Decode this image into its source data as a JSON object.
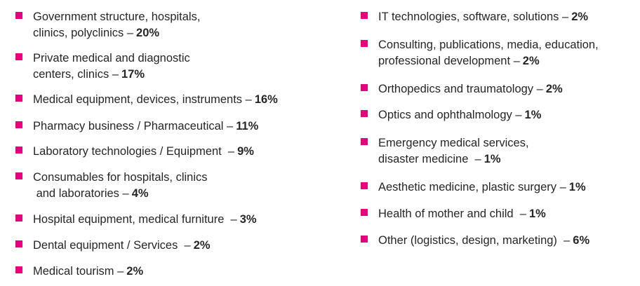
{
  "accent_color": "#e6007e",
  "bullet_icon": "square-bullet",
  "left_items": [
    {
      "lines": [
        "Government structure, hospitals,",
        "clinics, polyclinics –"
      ],
      "percent": "20%"
    },
    {
      "lines": [
        "Private medical and diagnostic",
        "centers, clinics –"
      ],
      "percent": "17%"
    },
    {
      "lines": [
        "Medical equipment, devices, instruments –"
      ],
      "percent": "16%"
    },
    {
      "lines": [
        "Pharmacy business / Pharmaceutical –"
      ],
      "percent": "11%"
    },
    {
      "lines": [
        "Laboratory technologies / Equipment  –"
      ],
      "percent": "9%"
    },
    {
      "lines": [
        "Consumables for hospitals, clinics",
        " and laboratories –"
      ],
      "percent": "4%"
    },
    {
      "lines": [
        "Hospital equipment, medical furniture  –"
      ],
      "percent": "3%"
    },
    {
      "lines": [
        "Dental equipment / Services  –"
      ],
      "percent": "2%"
    },
    {
      "lines": [
        "Medical tourism –"
      ],
      "percent": "2%"
    }
  ],
  "right_items": [
    {
      "lines": [
        "IT technologies, software, solutions –"
      ],
      "percent": "2%"
    },
    {
      "lines": [
        "Consulting, publications, media, education,",
        "professional development –"
      ],
      "percent": "2%"
    },
    {
      "lines": [
        "Orthopedics and traumatology –"
      ],
      "percent": "2%"
    },
    {
      "lines": [
        "Optics and ophthalmology –"
      ],
      "percent": "1%"
    },
    {
      "lines": [
        "Emergency medical services,",
        "disaster medicine  –"
      ],
      "percent": "1%"
    },
    {
      "lines": [
        "Aesthetic medicine, plastic surgery –"
      ],
      "percent": "1%"
    },
    {
      "lines": [
        "Health of mother and child  –"
      ],
      "percent": "1%"
    },
    {
      "lines": [
        "Other (logistics, design, marketing)  –"
      ],
      "percent": "6%"
    }
  ]
}
